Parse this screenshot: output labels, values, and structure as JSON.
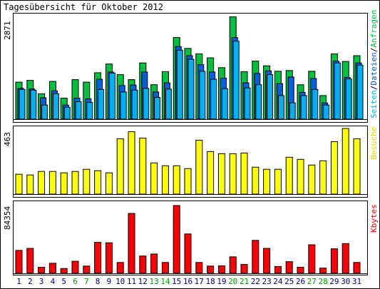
{
  "chart_data": [
    {
      "type": "bar",
      "title": "Tagesübersicht für Oktober 2012",
      "ylabel": "Seiten/Dateien/Anfragen",
      "ylabel_parts": [
        "Seiten",
        "/",
        "Dateien",
        "/",
        "Anfragen"
      ],
      "ymax_label": "2871",
      "ylim": [
        0,
        2871
      ],
      "categories": [
        "1",
        "2",
        "3",
        "4",
        "5",
        "6",
        "7",
        "8",
        "9",
        "10",
        "11",
        "12",
        "13",
        "14",
        "15",
        "16",
        "17",
        "18",
        "19",
        "20",
        "21",
        "22",
        "23",
        "24",
        "25",
        "26",
        "27",
        "28",
        "29",
        "30",
        "31"
      ],
      "series": [
        {
          "name": "Anfragen",
          "color": "#00c040",
          "values": [
            1020,
            1070,
            700,
            1040,
            580,
            1090,
            1020,
            1280,
            1520,
            1230,
            1090,
            1550,
            950,
            1310,
            2250,
            1950,
            1800,
            1690,
            1420,
            2820,
            1310,
            1600,
            1470,
            1320,
            1340,
            950,
            1320,
            650,
            1800,
            1590,
            1750
          ]
        },
        {
          "name": "Dateien",
          "color": "#0060e0",
          "values": [
            850,
            830,
            590,
            780,
            390,
            580,
            560,
            1100,
            1300,
            930,
            940,
            1300,
            750,
            1000,
            2000,
            1750,
            1500,
            1300,
            1130,
            2250,
            1000,
            1260,
            1330,
            980,
            1160,
            740,
            1120,
            450,
            1600,
            1150,
            1550
          ]
        },
        {
          "name": "Seiten",
          "color": "#00b0f0",
          "values": [
            820,
            800,
            390,
            700,
            330,
            480,
            460,
            820,
            1270,
            750,
            800,
            850,
            600,
            830,
            1900,
            1650,
            1320,
            1100,
            840,
            2150,
            860,
            950,
            1230,
            650,
            450,
            650,
            820,
            390,
            1550,
            1110,
            1490
          ]
        }
      ]
    },
    {
      "type": "bar",
      "ylabel": "Besuche",
      "ymax_label": "463",
      "ylim": [
        0,
        463
      ],
      "categories": [
        "1",
        "2",
        "3",
        "4",
        "5",
        "6",
        "7",
        "8",
        "9",
        "10",
        "11",
        "12",
        "13",
        "14",
        "15",
        "16",
        "17",
        "18",
        "19",
        "20",
        "21",
        "22",
        "23",
        "24",
        "25",
        "26",
        "27",
        "28",
        "29",
        "30",
        "31"
      ],
      "series": [
        {
          "name": "Besuche",
          "color": "#ffff00",
          "values": [
            140,
            135,
            160,
            160,
            150,
            160,
            175,
            165,
            150,
            390,
            440,
            395,
            220,
            200,
            200,
            180,
            380,
            300,
            285,
            285,
            290,
            190,
            175,
            175,
            260,
            245,
            205,
            235,
            370,
            463,
            390
          ]
        }
      ]
    },
    {
      "type": "bar",
      "ylabel": "Kbytes",
      "ymax_label": "84354",
      "ylim": [
        0,
        84354
      ],
      "categories": [
        "1",
        "2",
        "3",
        "4",
        "5",
        "6",
        "7",
        "8",
        "9",
        "10",
        "11",
        "12",
        "13",
        "14",
        "15",
        "16",
        "17",
        "18",
        "19",
        "20",
        "21",
        "22",
        "23",
        "24",
        "25",
        "26",
        "27",
        "28",
        "29",
        "30",
        "31"
      ],
      "series": [
        {
          "name": "Kbytes",
          "color": "#ff0000",
          "values": [
            28500,
            31000,
            7500,
            12500,
            6000,
            15000,
            9000,
            38500,
            38000,
            13500,
            74500,
            21500,
            24000,
            13500,
            84354,
            49000,
            13500,
            9000,
            9200,
            20500,
            11000,
            41000,
            31000,
            8500,
            14500,
            7500,
            35500,
            6500,
            30500,
            37000,
            13500
          ]
        }
      ]
    }
  ],
  "x_axis": {
    "labels": [
      "1",
      "2",
      "3",
      "4",
      "5",
      "6",
      "7",
      "8",
      "9",
      "10",
      "11",
      "12",
      "13",
      "14",
      "15",
      "16",
      "17",
      "18",
      "19",
      "20",
      "21",
      "22",
      "23",
      "24",
      "25",
      "26",
      "27",
      "28",
      "29",
      "30",
      "31"
    ],
    "weekend_days": [
      "6",
      "7",
      "13",
      "14",
      "20",
      "21",
      "27",
      "28"
    ],
    "weekday_color": "#000080",
    "weekend_color": "#00a000"
  },
  "colors": {
    "frame": "#000000",
    "baseline": "#000000",
    "bar_outline": "#000000"
  }
}
